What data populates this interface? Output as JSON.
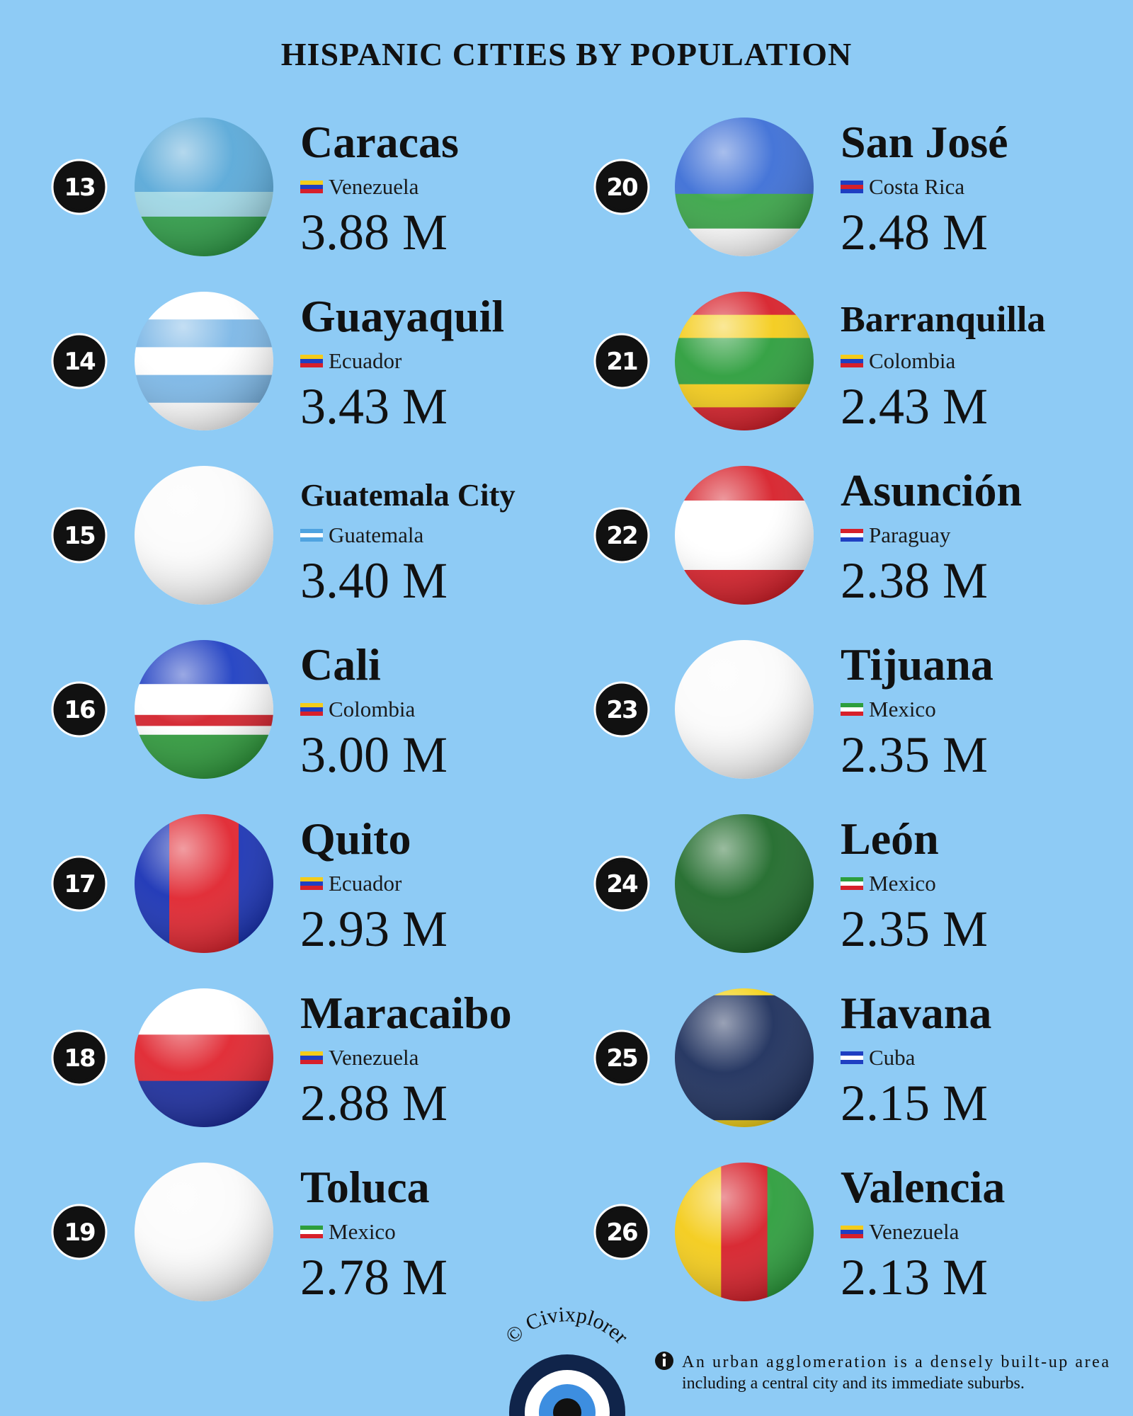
{
  "title": "HISPANIC CITIES BY POPULATION",
  "cities": [
    {
      "rank": "13",
      "name": "Caracas",
      "country": "Venezuela",
      "population": "3.88 M"
    },
    {
      "rank": "14",
      "name": "Guayaquil",
      "country": "Ecuador",
      "population": "3.43 M"
    },
    {
      "rank": "15",
      "name": "Guatemala City",
      "country": "Guatemala",
      "population": "3.40 M"
    },
    {
      "rank": "16",
      "name": "Cali",
      "country": "Colombia",
      "population": "3.00 M"
    },
    {
      "rank": "17",
      "name": "Quito",
      "country": "Ecuador",
      "population": "2.93 M"
    },
    {
      "rank": "18",
      "name": "Maracaibo",
      "country": "Venezuela",
      "population": "2.88 M"
    },
    {
      "rank": "19",
      "name": "Toluca",
      "country": "Mexico",
      "population": "2.78 M"
    },
    {
      "rank": "20",
      "name": "San José",
      "country": "Costa Rica",
      "population": "2.48 M"
    },
    {
      "rank": "21",
      "name": "Barranquilla",
      "country": "Colombia",
      "population": "2.43 M"
    },
    {
      "rank": "22",
      "name": "Asunción",
      "country": "Paraguay",
      "population": "2.38 M"
    },
    {
      "rank": "23",
      "name": "Tijuana",
      "country": "Mexico",
      "population": "2.35 M"
    },
    {
      "rank": "24",
      "name": "León",
      "country": "Mexico",
      "population": "2.35 M"
    },
    {
      "rank": "25",
      "name": "Havana",
      "country": "Cuba",
      "population": "2.15 M"
    },
    {
      "rank": "26",
      "name": "Valencia",
      "country": "Venezuela",
      "population": "2.13 M"
    }
  ],
  "credit": "© Civixplorer",
  "note": [
    "An urban agglomeration is a densely built-up area",
    "including a central city and its immediate suburbs."
  ]
}
